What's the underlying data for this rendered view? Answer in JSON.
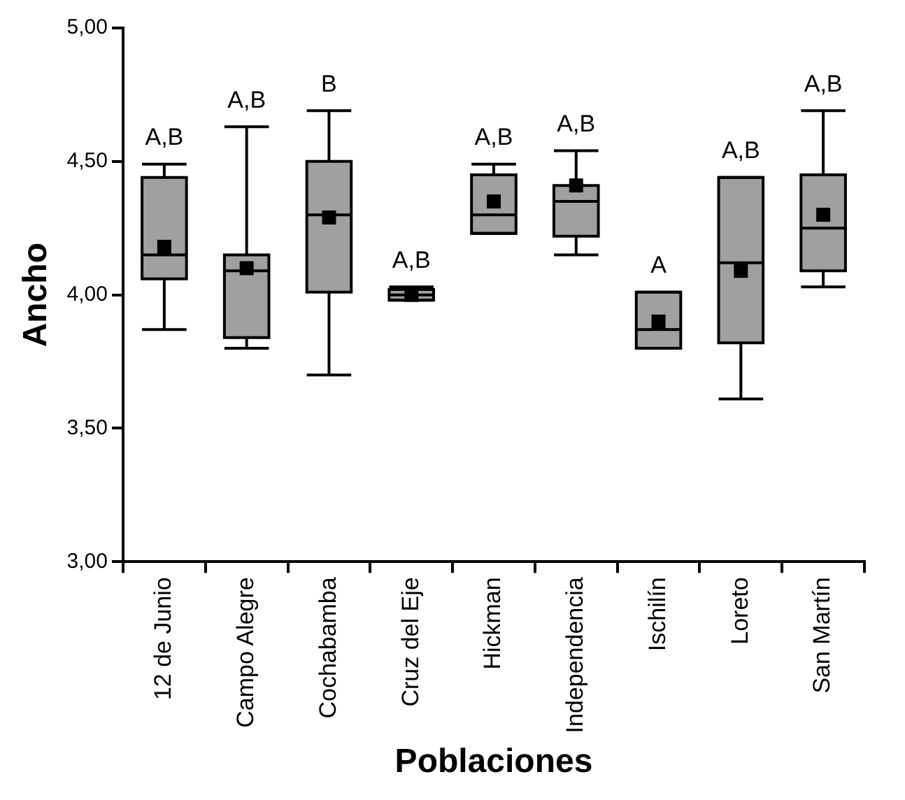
{
  "chart_data": {
    "type": "box",
    "xlabel": "Poblaciones",
    "ylabel": "Ancho",
    "categories": [
      "12 de Junio",
      "Campo Alegre",
      "Cochabamba",
      "Cruz del Eje",
      "Hickman",
      "Independencia",
      "Ischilín",
      "Loreto",
      "San Martín"
    ],
    "color": "#a0a0a0",
    "boxes": [
      {
        "low": 3.87,
        "q1": 4.06,
        "median": 4.15,
        "q3": 4.44,
        "high": 4.49,
        "mean": 4.18
      },
      {
        "low": 3.8,
        "q1": 3.84,
        "median": 4.09,
        "q3": 4.15,
        "high": 4.63,
        "mean": 4.1
      },
      {
        "low": 3.7,
        "q1": 4.01,
        "median": 4.3,
        "q3": 4.5,
        "high": 4.69,
        "mean": 4.29
      },
      {
        "low": 3.98,
        "q1": 3.98,
        "median": 4.0,
        "q3": 4.02,
        "high": 4.03,
        "mean": 4.0
      },
      {
        "low": 4.23,
        "q1": 4.23,
        "median": 4.3,
        "q3": 4.45,
        "high": 4.49,
        "mean": 4.35
      },
      {
        "low": 4.15,
        "q1": 4.22,
        "median": 4.35,
        "q3": 4.41,
        "high": 4.54,
        "mean": 4.41
      },
      {
        "low": 3.8,
        "q1": 3.8,
        "median": 3.87,
        "q3": 4.01,
        "high": 4.01,
        "mean": 3.9
      },
      {
        "low": 3.61,
        "q1": 3.82,
        "median": 4.12,
        "q3": 4.44,
        "high": 4.44,
        "mean": 4.09
      },
      {
        "low": 4.03,
        "q1": 4.09,
        "median": 4.25,
        "q3": 4.45,
        "high": 4.69,
        "mean": 4.3
      }
    ],
    "annotations": [
      "A,B",
      "A,B",
      "B",
      "A,B",
      "A,B",
      "A,B",
      "A",
      "A,B",
      "A,B"
    ],
    "ylim": [
      3,
      5
    ],
    "yticks": [
      {
        "value": 3,
        "label": "3,00"
      },
      {
        "value": 3.5,
        "label": "3,50"
      },
      {
        "value": 4,
        "label": "4,00"
      },
      {
        "value": 4.5,
        "label": "4,50"
      },
      {
        "value": 5,
        "label": "5,00"
      }
    ],
    "grid": false,
    "legend": false,
    "marker": "square"
  }
}
